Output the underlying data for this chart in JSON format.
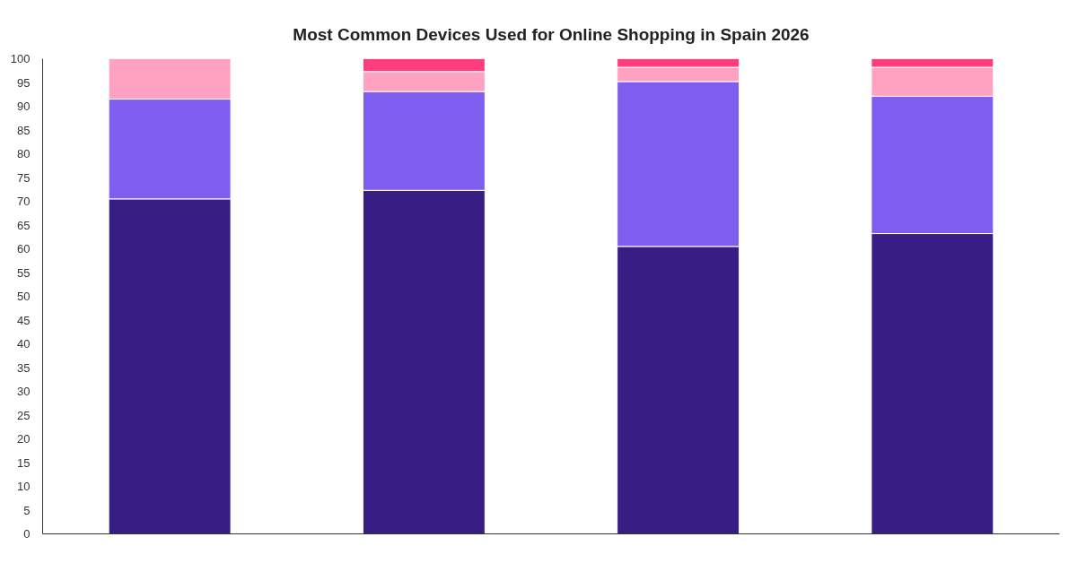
{
  "chart_data": {
    "type": "bar",
    "title": "Most Common Devices Used for Online Shopping in Spain 2026",
    "categories": [
      null,
      null,
      null,
      null
    ],
    "stacked": true,
    "series": [
      {
        "color": "#381d84",
        "values": [
          70.5,
          72.3,
          60.5,
          63.2
        ]
      },
      {
        "color": "#7e5eee",
        "values": [
          21.0,
          20.8,
          34.7,
          28.9
        ]
      },
      {
        "color": "#ffa1c1",
        "values": [
          8.5,
          4.2,
          3.0,
          6.1
        ]
      },
      {
        "color": "#ff3c7e",
        "values": [
          null,
          2.7,
          1.8,
          1.8
        ]
      }
    ],
    "ylim": [
      0,
      100
    ],
    "yticks": [
      0,
      5,
      10,
      15,
      20,
      25,
      30,
      35,
      40,
      45,
      50,
      55,
      60,
      65,
      70,
      75,
      80,
      85,
      90,
      95,
      100
    ],
    "tick_labels": "y"
  }
}
